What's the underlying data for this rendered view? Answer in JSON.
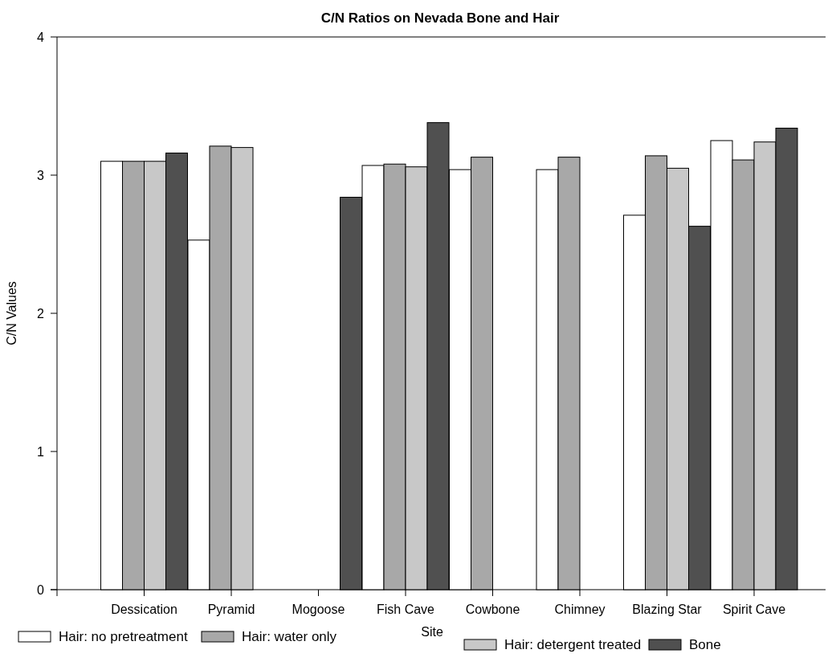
{
  "chart_data": {
    "type": "bar",
    "title": "C/N Ratios on Nevada Bone and Hair",
    "xlabel": "Site",
    "ylabel": "C/N Values",
    "categories": [
      "Dessication",
      "Pyramid",
      "Mogoose",
      "Fish Cave",
      "Cowbone",
      "Chimney",
      "Blazing Star",
      "Spirit Cave"
    ],
    "series": [
      {
        "name": "Hair: no pretreatment",
        "color": "#ffffff",
        "values": [
          3.1,
          2.53,
          null,
          3.07,
          3.04,
          3.04,
          2.71,
          3.25
        ]
      },
      {
        "name": "Hair: water only",
        "color": "#a8a8a8",
        "values": [
          3.1,
          3.21,
          null,
          3.08,
          3.13,
          3.13,
          3.14,
          3.11
        ]
      },
      {
        "name": "Hair: detergent treated",
        "color": "#c8c8c8",
        "values": [
          3.1,
          3.2,
          null,
          3.06,
          null,
          null,
          3.05,
          3.24
        ]
      },
      {
        "name": "Bone",
        "color": "#505050",
        "values": [
          3.16,
          null,
          2.84,
          3.38,
          null,
          null,
          2.63,
          3.34
        ]
      }
    ],
    "ylim": [
      0,
      4
    ],
    "yticks": [
      0,
      1,
      2,
      3,
      4
    ],
    "grid": false,
    "legend": "bottom"
  }
}
